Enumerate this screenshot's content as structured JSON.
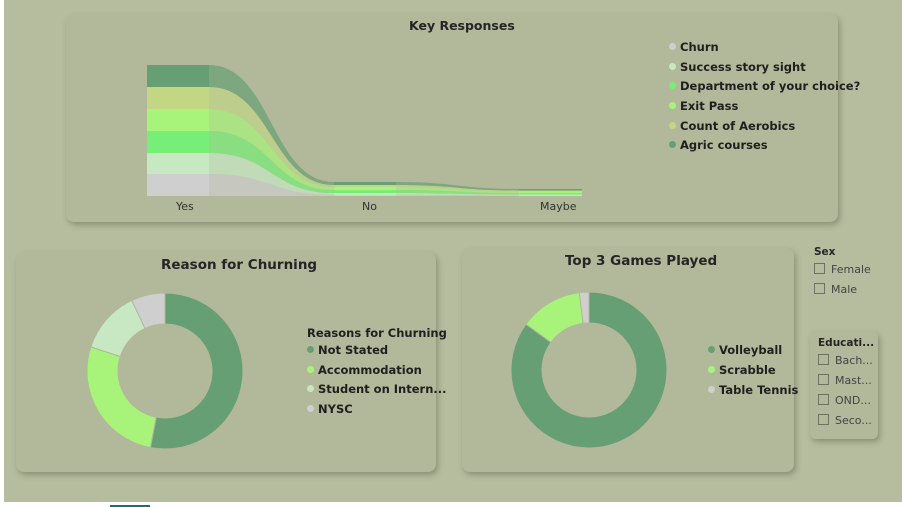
{
  "charts": {
    "ribbon": {
      "title": "Key Responses",
      "legend": [
        {
          "label": "Churn",
          "color": "#cfcfcf"
        },
        {
          "label": "Success story sight",
          "color": "#c8e8c4"
        },
        {
          "label": "Department of your choice?",
          "color": "#77ee77"
        },
        {
          "label": "Exit Pass",
          "color": "#a8f47a"
        },
        {
          "label": "Count of Aerobics",
          "color": "#c2d684"
        },
        {
          "label": "Agric courses",
          "color": "#679f74"
        }
      ]
    },
    "churn": {
      "title": "Reason for Churning",
      "legend_title": "Reasons for Churning",
      "legend": [
        {
          "label": "Not Stated",
          "color": "#679f74"
        },
        {
          "label": "Accommodation",
          "color": "#a8f47a"
        },
        {
          "label": "Student on Intern...",
          "color": "#c8e8c4"
        },
        {
          "label": "NYSC",
          "color": "#cfcfcf"
        }
      ]
    },
    "games": {
      "title": "Top 3 Games Played",
      "legend": [
        {
          "label": "Volleyball",
          "color": "#679f74"
        },
        {
          "label": "Scrabble",
          "color": "#a8f47a"
        },
        {
          "label": "Table Tennis",
          "color": "#cfcfcf"
        }
      ]
    }
  },
  "slicers": {
    "sex": {
      "title": "Sex",
      "options": [
        "Female",
        "Male"
      ]
    },
    "education": {
      "title": "Educati...",
      "options": [
        "Bach...",
        "Mast...",
        "OND...",
        "Seco..."
      ]
    }
  },
  "chart_data": [
    {
      "type": "area",
      "chart_kind": "ribbon",
      "title": "Key Responses",
      "categories": [
        "Yes",
        "No",
        "Maybe"
      ],
      "series": [
        {
          "name": "Churn",
          "values": [
            22,
            1,
            0.5
          ]
        },
        {
          "name": "Success story sight",
          "values": [
            21,
            2,
            1
          ]
        },
        {
          "name": "Department of your choice?",
          "values": [
            22,
            3,
            1.5
          ]
        },
        {
          "name": "Exit Pass",
          "values": [
            22,
            3,
            1.5
          ]
        },
        {
          "name": "Count of Aerobics",
          "values": [
            22,
            2,
            1
          ]
        },
        {
          "name": "Agric courses",
          "values": [
            22,
            3,
            1.5
          ]
        }
      ]
    },
    {
      "type": "pie",
      "donut": true,
      "title": "Reason for Churning",
      "categories": [
        "Not Stated",
        "Accommodation",
        "Student on Intern...",
        "NYSC"
      ],
      "values": [
        53,
        27,
        13,
        7
      ]
    },
    {
      "type": "pie",
      "donut": true,
      "title": "Top 3 Games Played",
      "categories": [
        "Volleyball",
        "Scrabble",
        "Table Tennis"
      ],
      "values": [
        85,
        13,
        2
      ]
    }
  ]
}
